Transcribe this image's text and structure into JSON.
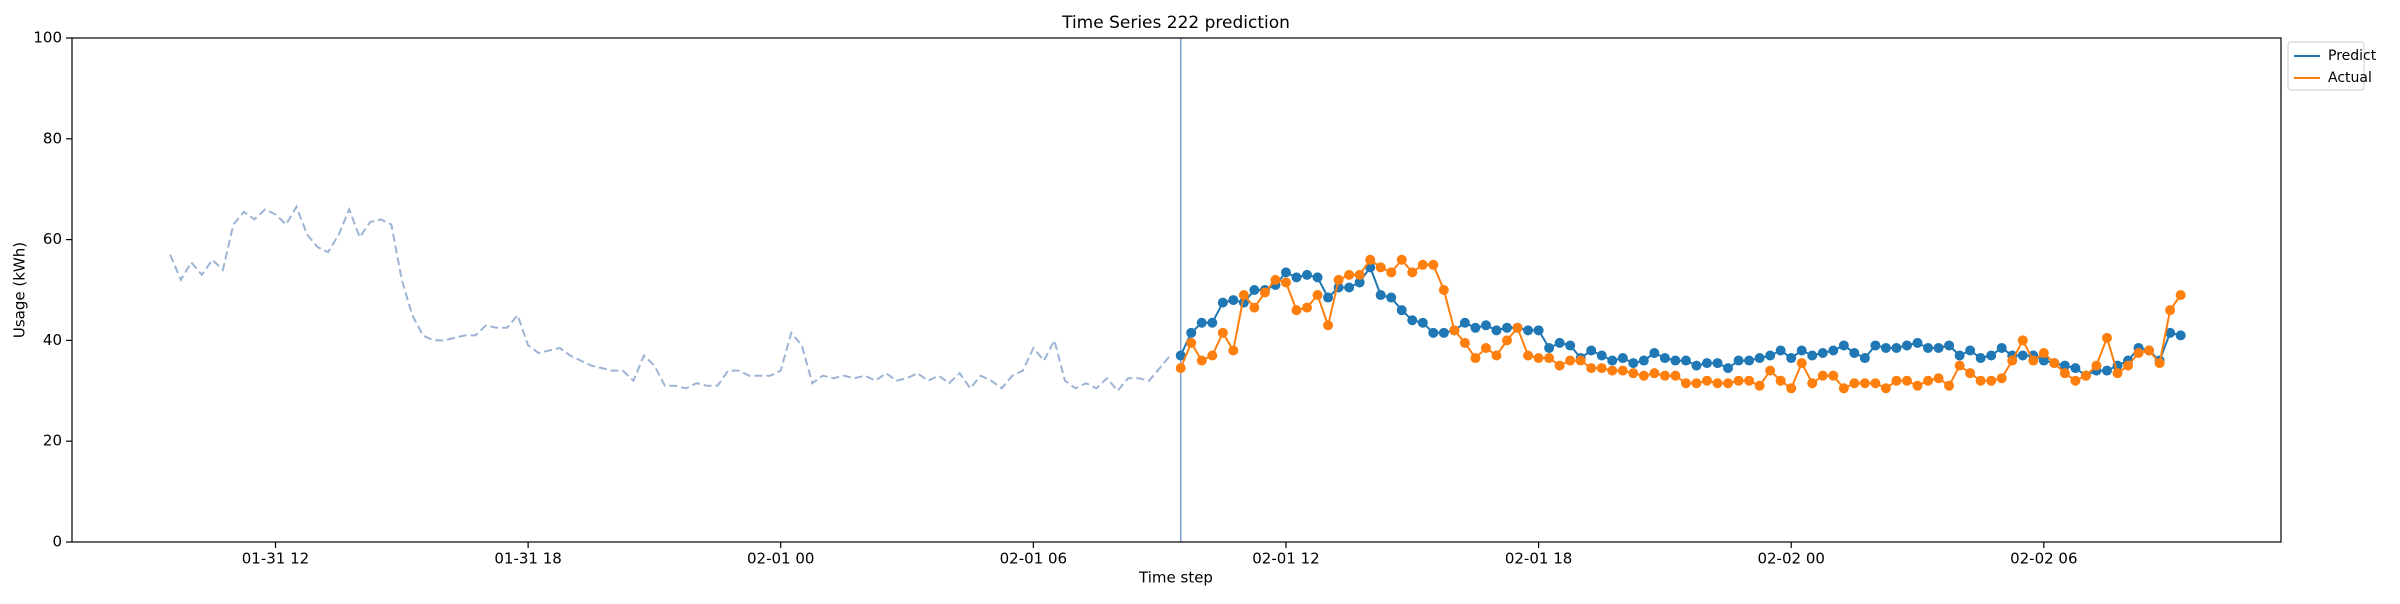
{
  "chart_data": {
    "type": "line",
    "title": "Time Series 222 prediction",
    "x_label": "Time step",
    "y_label": "Usage (kWh)",
    "xlim": [
      "01-31 07:10",
      "02-02 11:38"
    ],
    "ylim": [
      0,
      100
    ],
    "yticks": [
      0,
      20,
      40,
      60,
      80,
      100
    ],
    "xticks": [
      {
        "value": "01-31 12:00",
        "label": "01-31 12"
      },
      {
        "value": "01-31 18:00",
        "label": "01-31 18"
      },
      {
        "value": "02-01 00:00",
        "label": "02-01 00"
      },
      {
        "value": "02-01 06:00",
        "label": "02-01 06"
      },
      {
        "value": "02-01 12:00",
        "label": "02-01 12"
      },
      {
        "value": "02-01 18:00",
        "label": "02-01 18"
      },
      {
        "value": "02-02 00:00",
        "label": "02-02 00"
      },
      {
        "value": "02-02 06:00",
        "label": "02-02 06"
      }
    ],
    "legend": "upper right outside",
    "history": {
      "color": "#9db4d4",
      "dashed": true,
      "x": [
        "01-31 09:30",
        "01-31 09:45",
        "01-31 10:00",
        "01-31 10:15",
        "01-31 10:30",
        "01-31 10:45",
        "01-31 11:00",
        "01-31 11:15",
        "01-31 11:30",
        "01-31 11:45",
        "01-31 12:00",
        "01-31 12:15",
        "01-31 12:30",
        "01-31 12:45",
        "01-31 13:00",
        "01-31 13:15",
        "01-31 13:30",
        "01-31 13:45",
        "01-31 14:00",
        "01-31 14:15",
        "01-31 14:30",
        "01-31 14:45",
        "01-31 15:00",
        "01-31 15:15",
        "01-31 15:30",
        "01-31 15:45",
        "01-31 16:00",
        "01-31 16:15",
        "01-31 16:30",
        "01-31 16:45",
        "01-31 17:00",
        "01-31 17:15",
        "01-31 17:30",
        "01-31 17:45",
        "01-31 18:00",
        "01-31 18:15",
        "01-31 18:30",
        "01-31 18:45",
        "01-31 19:00",
        "01-31 19:15",
        "01-31 19:30",
        "01-31 19:45",
        "01-31 20:00",
        "01-31 20:15",
        "01-31 20:30",
        "01-31 20:45",
        "01-31 21:00",
        "01-31 21:15",
        "01-31 21:30",
        "01-31 21:45",
        "01-31 22:00",
        "01-31 22:15",
        "01-31 22:30",
        "01-31 22:45",
        "01-31 23:00",
        "01-31 23:15",
        "01-31 23:30",
        "01-31 23:45",
        "02-01 00:00",
        "02-01 00:15",
        "02-01 00:30",
        "02-01 00:45",
        "02-01 01:00",
        "02-01 01:15",
        "02-01 01:30",
        "02-01 01:45",
        "02-01 02:00",
        "02-01 02:15",
        "02-01 02:30",
        "02-01 02:45",
        "02-01 03:00",
        "02-01 03:15",
        "02-01 03:30",
        "02-01 03:45",
        "02-01 04:00",
        "02-01 04:15",
        "02-01 04:30",
        "02-01 04:45",
        "02-01 05:00",
        "02-01 05:15",
        "02-01 05:30",
        "02-01 05:45",
        "02-01 06:00",
        "02-01 06:15",
        "02-01 06:30",
        "02-01 06:45",
        "02-01 07:00",
        "02-01 07:15",
        "02-01 07:30",
        "02-01 07:45",
        "02-01 08:00",
        "02-01 08:15",
        "02-01 08:30",
        "02-01 08:45",
        "02-01 09:00",
        "02-01 09:15"
      ],
      "values": [
        57,
        52,
        55.5,
        53,
        56,
        54,
        63,
        65.5,
        64,
        66,
        65,
        63,
        66.5,
        61,
        58.5,
        57.5,
        61,
        66,
        60.5,
        63.5,
        64,
        63,
        52,
        45,
        41,
        40,
        40,
        40.5,
        41,
        41,
        43,
        42.5,
        42.5,
        45,
        39,
        37.5,
        38,
        38.5,
        37,
        36,
        35,
        34.5,
        34,
        34,
        32,
        37,
        35,
        31,
        31,
        30.5,
        31.5,
        31,
        31,
        34,
        34,
        33,
        33,
        33,
        34,
        41.5,
        39,
        31.5,
        33,
        32.5,
        33,
        32.5,
        33,
        32,
        33.5,
        32,
        32.5,
        33.5,
        32,
        33,
        31.5,
        33.5,
        30.5,
        33,
        32,
        30.5,
        33,
        34,
        38.5,
        36,
        40,
        32,
        30.5,
        31.5,
        30.5,
        32.5,
        30,
        32.5,
        32.5,
        32,
        34.5,
        37
      ]
    },
    "x": [
      "02-01 09:30",
      "02-01 09:45",
      "02-01 10:00",
      "02-01 10:15",
      "02-01 10:30",
      "02-01 10:45",
      "02-01 11:00",
      "02-01 11:15",
      "02-01 11:30",
      "02-01 11:45",
      "02-01 12:00",
      "02-01 12:15",
      "02-01 12:30",
      "02-01 12:45",
      "02-01 13:00",
      "02-01 13:15",
      "02-01 13:30",
      "02-01 13:45",
      "02-01 14:00",
      "02-01 14:15",
      "02-01 14:30",
      "02-01 14:45",
      "02-01 15:00",
      "02-01 15:15",
      "02-01 15:30",
      "02-01 15:45",
      "02-01 16:00",
      "02-01 16:15",
      "02-01 16:30",
      "02-01 16:45",
      "02-01 17:00",
      "02-01 17:15",
      "02-01 17:30",
      "02-01 17:45",
      "02-01 18:00",
      "02-01 18:15",
      "02-01 18:30",
      "02-01 18:45",
      "02-01 19:00",
      "02-01 19:15",
      "02-01 19:30",
      "02-01 19:45",
      "02-01 20:00",
      "02-01 20:15",
      "02-01 20:30",
      "02-01 20:45",
      "02-01 21:00",
      "02-01 21:15",
      "02-01 21:30",
      "02-01 21:45",
      "02-01 22:00",
      "02-01 22:15",
      "02-01 22:30",
      "02-01 22:45",
      "02-01 23:00",
      "02-01 23:15",
      "02-01 23:30",
      "02-01 23:45",
      "02-02 00:00",
      "02-02 00:15",
      "02-02 00:30",
      "02-02 00:45",
      "02-02 01:00",
      "02-02 01:15",
      "02-02 01:30",
      "02-02 01:45",
      "02-02 02:00",
      "02-02 02:15",
      "02-02 02:30",
      "02-02 02:45",
      "02-02 03:00",
      "02-02 03:15",
      "02-02 03:30",
      "02-02 03:45",
      "02-02 04:00",
      "02-02 04:15",
      "02-02 04:30",
      "02-02 04:45",
      "02-02 05:00",
      "02-02 05:15",
      "02-02 05:30",
      "02-02 05:45",
      "02-02 06:00",
      "02-02 06:15",
      "02-02 06:30",
      "02-02 06:45",
      "02-02 07:00",
      "02-02 07:15",
      "02-02 07:30",
      "02-02 07:45",
      "02-02 08:00",
      "02-02 08:15",
      "02-02 08:30",
      "02-02 08:45",
      "02-02 09:00",
      "02-02 09:15"
    ],
    "series": [
      {
        "name": "Predict",
        "color": "#1f77b4",
        "values": [
          37,
          41.5,
          43.5,
          43.5,
          47.5,
          48,
          47.5,
          50,
          50,
          51,
          53.5,
          52.5,
          53,
          52.5,
          48.5,
          50.5,
          50.5,
          51.5,
          54.5,
          49,
          48.5,
          46,
          44,
          43.5,
          41.5,
          41.5,
          42,
          43.5,
          42.5,
          43,
          42,
          42.5,
          42.5,
          42,
          42,
          38.5,
          39.5,
          39,
          36.5,
          38,
          37,
          36,
          36.5,
          35.5,
          36,
          37.5,
          36.5,
          36,
          36,
          35,
          35.5,
          35.5,
          34.5,
          36,
          36,
          36.5,
          37,
          38,
          36.5,
          38,
          37,
          37.5,
          38,
          39,
          37.5,
          36.5,
          39,
          38.5,
          38.5,
          39,
          39.5,
          38.5,
          38.5,
          39,
          37,
          38,
          36.5,
          37,
          38.5,
          37,
          37,
          37,
          36,
          35.5,
          35,
          34.5,
          33,
          34,
          34,
          35,
          36,
          38.5,
          38,
          36,
          41.5,
          41
        ]
      },
      {
        "name": "Actual",
        "color": "#ff7f0e",
        "values": [
          34.5,
          39.5,
          36,
          37,
          41.5,
          38,
          49,
          46.5,
          49.5,
          52,
          51.5,
          46,
          46.5,
          49,
          43,
          52,
          53,
          53,
          56,
          54.5,
          53.5,
          56,
          53.5,
          55,
          55,
          50,
          42,
          39.5,
          36.5,
          38.5,
          37,
          40,
          42.5,
          37,
          36.5,
          36.5,
          35,
          36,
          36,
          34.5,
          34.5,
          34,
          34,
          33.5,
          33,
          33.5,
          33,
          33,
          31.5,
          31.5,
          32,
          31.5,
          31.5,
          32,
          32,
          31,
          34,
          32,
          30.5,
          35.5,
          31.5,
          33,
          33,
          30.5,
          31.5,
          31.5,
          31.5,
          30.5,
          32,
          32,
          31,
          32,
          32.5,
          31,
          35,
          33.5,
          32,
          32,
          32.5,
          36,
          40,
          36,
          37.5,
          35.5,
          33.5,
          32,
          33,
          35,
          40.5,
          33.5,
          35,
          37.5,
          38,
          35.5,
          46,
          49
        ]
      }
    ]
  }
}
